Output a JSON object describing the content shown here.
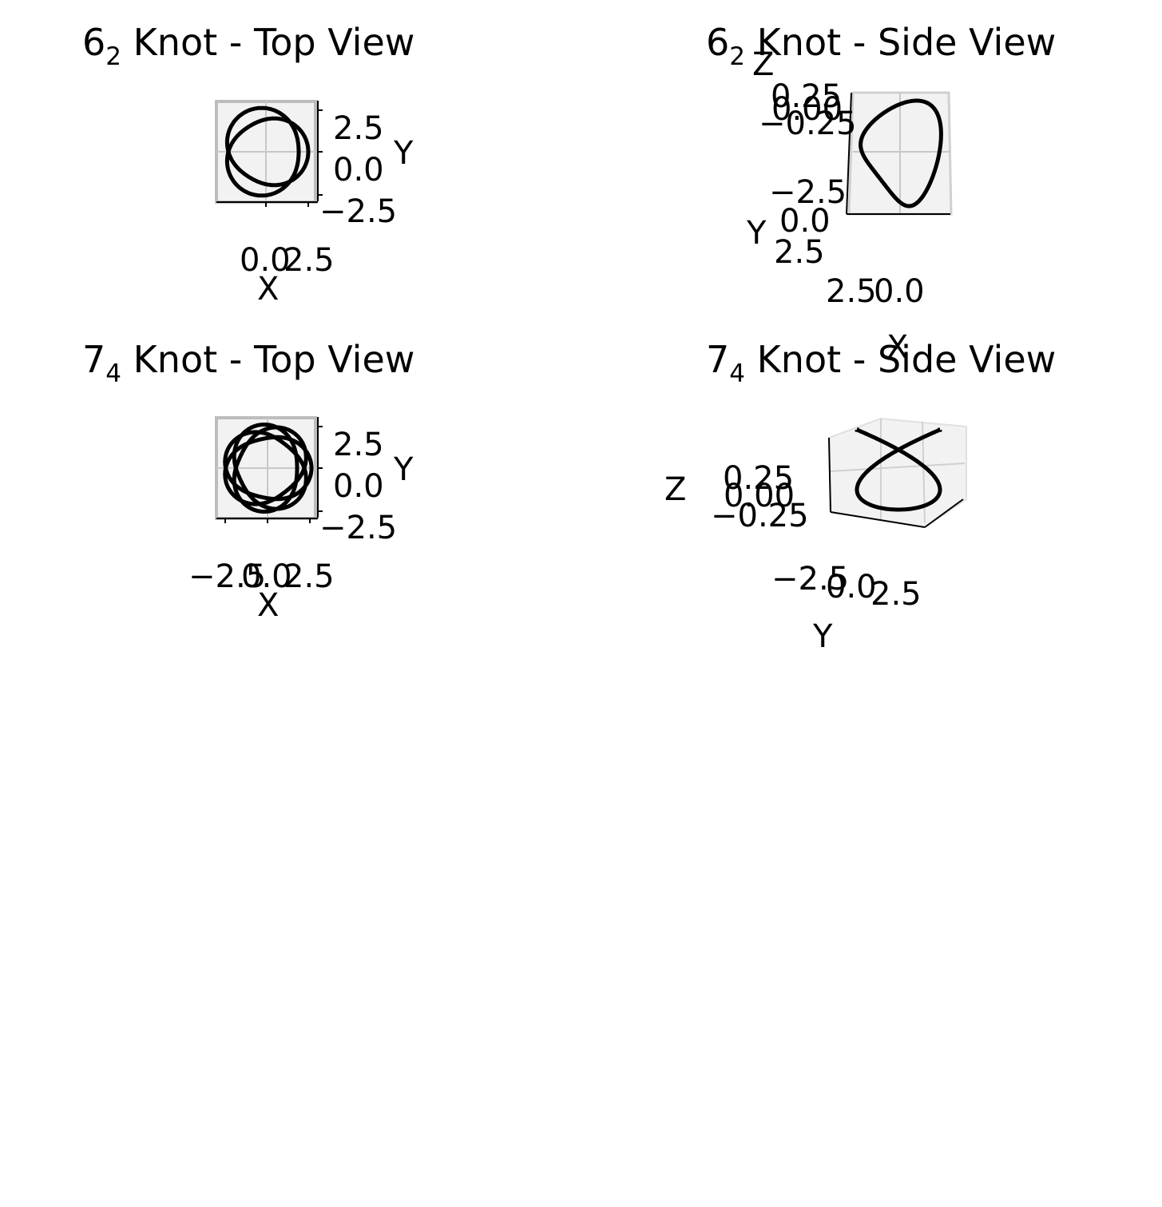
{
  "panels": [
    {
      "title": {
        "main": "6",
        "sub": "2",
        "rest": " Knot - Top View"
      },
      "xlabel": "X",
      "ylabel": "Y",
      "xticks": [
        "0.0",
        "2.5"
      ],
      "yticks": [
        "2.5",
        "0.0",
        "−2.5"
      ]
    },
    {
      "title": {
        "main": "6",
        "sub": "2",
        "rest": " Knot - Side View"
      },
      "xlabel": "X",
      "ylabel": "Y",
      "zlabel": "Z",
      "xticks": [
        "2.5",
        "0.0"
      ],
      "yticks": [
        "−2.5",
        "0.0",
        "2.5"
      ],
      "zticks": [
        "0.25",
        "0.00",
        "−0.25"
      ]
    },
    {
      "title": {
        "main": "7",
        "sub": "4",
        "rest": " Knot - Top View"
      },
      "xlabel": "X",
      "ylabel": "Y",
      "xticks": [
        "−2.5",
        "0.0",
        "2.5"
      ],
      "yticks": [
        "2.5",
        "0.0",
        "−2.5"
      ]
    },
    {
      "title": {
        "main": "7",
        "sub": "4",
        "rest": " Knot - Side View"
      },
      "ylabel": "Y",
      "zlabel": "Z",
      "yticks": [
        "−2.5",
        "0.0",
        "2.5"
      ],
      "zticks": [
        "0.25",
        "0.00",
        "−0.25"
      ]
    }
  ],
  "chart_data": [
    {
      "type": "line",
      "title": "6₂ Knot - Top View",
      "xlabel": "X",
      "ylabel": "Y",
      "projection": "3d-top",
      "curve": "knot 6_2",
      "series": [
        {
          "values": []
        }
      ],
      "line_color": "#000000"
    },
    {
      "type": "line",
      "title": "6₂ Knot - Side View",
      "xlabel": "X",
      "ylabel": "Y",
      "zlabel": "Z",
      "projection": "3d-side",
      "curve": "knot 6_2",
      "series": [
        {
          "values": []
        }
      ],
      "line_color": "#000000"
    },
    {
      "type": "line",
      "title": "7₄ Knot - Top View",
      "xlabel": "X",
      "ylabel": "Y",
      "projection": "3d-top",
      "curve": "knot 7_4",
      "series": [
        {
          "values": []
        }
      ],
      "line_color": "#000000"
    },
    {
      "type": "line",
      "title": "7₄ Knot - Side View",
      "ylabel": "Y",
      "zlabel": "Z",
      "projection": "3d-side",
      "curve": "knot 7_4",
      "series": [
        {
          "values": []
        }
      ],
      "line_color": "#000000"
    }
  ]
}
